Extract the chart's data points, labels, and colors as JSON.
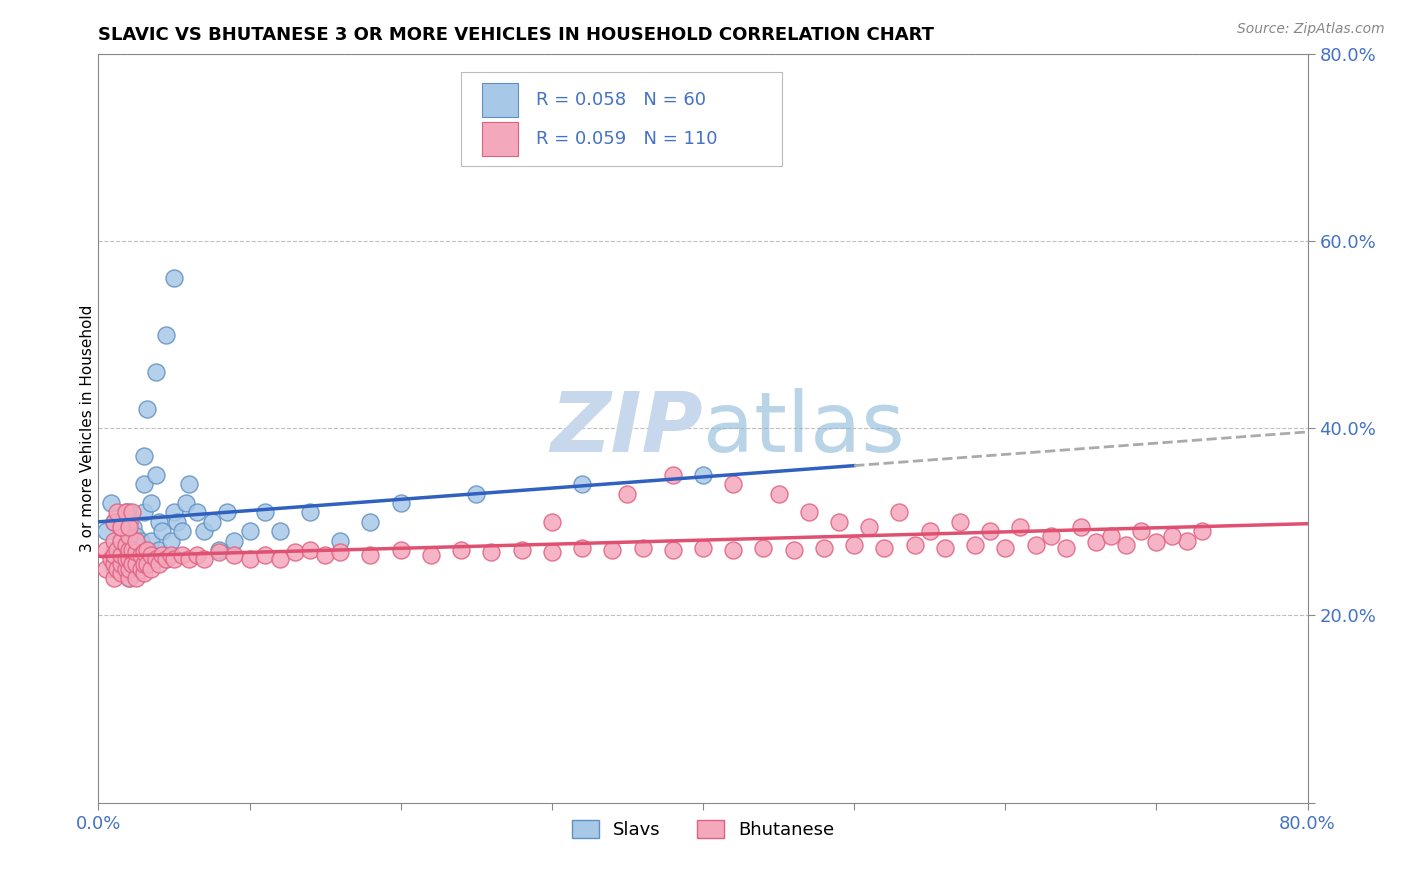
{
  "title": "SLAVIC VS BHUTANESE 3 OR MORE VEHICLES IN HOUSEHOLD CORRELATION CHART",
  "source_text": "Source: ZipAtlas.com",
  "ylabel": "3 or more Vehicles in Household",
  "xlim": [
    0.0,
    0.8
  ],
  "ylim": [
    0.0,
    0.8
  ],
  "slavs_R": 0.058,
  "slavs_N": 60,
  "bhutanese_R": 0.059,
  "bhutanese_N": 110,
  "slavs_color": "#A8C8E8",
  "bhutanese_color": "#F4A8BC",
  "slavs_edge_color": "#6090C0",
  "bhutanese_edge_color": "#E06080",
  "slavs_line_color": "#3060C0",
  "bhutanese_line_color": "#E05070",
  "legend_text_color": "#4472C4",
  "axis_label_color": "#4472C4",
  "grid_color": "#C0C0C0",
  "watermark_color": "#C8D8EC",
  "legend_slavs_label": "Slavs",
  "legend_bhutanese_label": "Bhutanese",
  "slavs_x": [
    0.005,
    0.008,
    0.01,
    0.01,
    0.01,
    0.012,
    0.015,
    0.015,
    0.016,
    0.018,
    0.018,
    0.02,
    0.02,
    0.02,
    0.02,
    0.02,
    0.022,
    0.022,
    0.023,
    0.025,
    0.025,
    0.025,
    0.028,
    0.028,
    0.03,
    0.03,
    0.03,
    0.032,
    0.035,
    0.035,
    0.038,
    0.038,
    0.04,
    0.04,
    0.042,
    0.045,
    0.045,
    0.048,
    0.05,
    0.05,
    0.052,
    0.055,
    0.058,
    0.06,
    0.065,
    0.07,
    0.075,
    0.08,
    0.085,
    0.09,
    0.1,
    0.11,
    0.12,
    0.14,
    0.16,
    0.18,
    0.2,
    0.25,
    0.32,
    0.4
  ],
  "slavs_y": [
    0.29,
    0.32,
    0.25,
    0.27,
    0.3,
    0.26,
    0.28,
    0.3,
    0.26,
    0.285,
    0.31,
    0.24,
    0.255,
    0.27,
    0.29,
    0.31,
    0.25,
    0.27,
    0.295,
    0.245,
    0.265,
    0.285,
    0.26,
    0.28,
    0.31,
    0.34,
    0.37,
    0.42,
    0.28,
    0.32,
    0.35,
    0.46,
    0.27,
    0.3,
    0.29,
    0.26,
    0.5,
    0.28,
    0.31,
    0.56,
    0.3,
    0.29,
    0.32,
    0.34,
    0.31,
    0.29,
    0.3,
    0.27,
    0.31,
    0.28,
    0.29,
    0.31,
    0.29,
    0.31,
    0.28,
    0.3,
    0.32,
    0.33,
    0.34,
    0.35
  ],
  "bhutanese_x": [
    0.005,
    0.005,
    0.008,
    0.01,
    0.01,
    0.01,
    0.01,
    0.012,
    0.012,
    0.015,
    0.015,
    0.015,
    0.015,
    0.015,
    0.018,
    0.018,
    0.018,
    0.02,
    0.02,
    0.02,
    0.02,
    0.02,
    0.02,
    0.022,
    0.022,
    0.025,
    0.025,
    0.025,
    0.025,
    0.028,
    0.028,
    0.03,
    0.03,
    0.03,
    0.032,
    0.032,
    0.035,
    0.035,
    0.038,
    0.04,
    0.042,
    0.045,
    0.048,
    0.05,
    0.055,
    0.06,
    0.065,
    0.07,
    0.08,
    0.09,
    0.1,
    0.11,
    0.12,
    0.13,
    0.14,
    0.15,
    0.16,
    0.18,
    0.2,
    0.22,
    0.24,
    0.26,
    0.28,
    0.3,
    0.32,
    0.34,
    0.36,
    0.38,
    0.4,
    0.42,
    0.44,
    0.46,
    0.48,
    0.5,
    0.52,
    0.54,
    0.56,
    0.58,
    0.6,
    0.62,
    0.64,
    0.66,
    0.68,
    0.7,
    0.72,
    0.3,
    0.35,
    0.38,
    0.42,
    0.45,
    0.47,
    0.49,
    0.51,
    0.53,
    0.55,
    0.57,
    0.59,
    0.61,
    0.63,
    0.65,
    0.67,
    0.69,
    0.71,
    0.73,
    0.01,
    0.012,
    0.015,
    0.018,
    0.02,
    0.022
  ],
  "bhutanese_y": [
    0.25,
    0.27,
    0.26,
    0.24,
    0.255,
    0.265,
    0.28,
    0.25,
    0.27,
    0.245,
    0.255,
    0.265,
    0.28,
    0.295,
    0.25,
    0.26,
    0.275,
    0.24,
    0.25,
    0.26,
    0.27,
    0.285,
    0.3,
    0.255,
    0.27,
    0.24,
    0.255,
    0.268,
    0.28,
    0.25,
    0.265,
    0.245,
    0.255,
    0.268,
    0.255,
    0.27,
    0.25,
    0.265,
    0.26,
    0.255,
    0.265,
    0.26,
    0.265,
    0.26,
    0.265,
    0.26,
    0.265,
    0.26,
    0.268,
    0.265,
    0.26,
    0.265,
    0.26,
    0.268,
    0.27,
    0.265,
    0.268,
    0.265,
    0.27,
    0.265,
    0.27,
    0.268,
    0.27,
    0.268,
    0.272,
    0.27,
    0.272,
    0.27,
    0.272,
    0.27,
    0.272,
    0.27,
    0.272,
    0.275,
    0.272,
    0.275,
    0.272,
    0.275,
    0.272,
    0.275,
    0.272,
    0.278,
    0.275,
    0.278,
    0.28,
    0.3,
    0.33,
    0.35,
    0.34,
    0.33,
    0.31,
    0.3,
    0.295,
    0.31,
    0.29,
    0.3,
    0.29,
    0.295,
    0.285,
    0.295,
    0.285,
    0.29,
    0.285,
    0.29,
    0.3,
    0.31,
    0.295,
    0.31,
    0.295,
    0.31
  ]
}
